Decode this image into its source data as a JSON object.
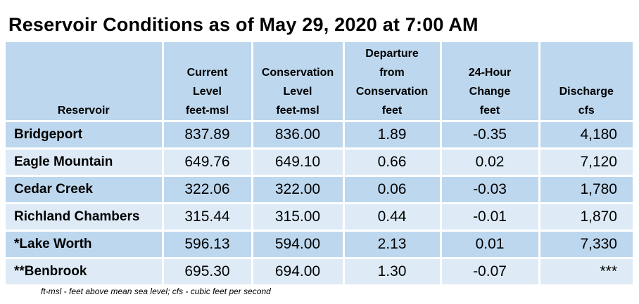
{
  "title": "Reservoir Conditions as of May 29, 2020 at 7:00 AM",
  "headers": {
    "reservoir": "Reservoir",
    "current": [
      "Current",
      "Level",
      "feet-msl"
    ],
    "conservation": [
      "Conservation",
      "Level",
      "feet-msl"
    ],
    "departure": [
      "Departure",
      "from",
      "Conservation",
      "feet"
    ],
    "change": [
      "24-Hour",
      "Change",
      "feet"
    ],
    "discharge": [
      "Discharge",
      "cfs"
    ]
  },
  "rows": [
    {
      "name": "Bridgeport",
      "current": "837.89",
      "conservation": "836.00",
      "departure": "1.89",
      "change": "-0.35",
      "discharge": "4,180"
    },
    {
      "name": "Eagle Mountain",
      "current": "649.76",
      "conservation": "649.10",
      "departure": "0.66",
      "change": "0.02",
      "discharge": "7,120"
    },
    {
      "name": "Cedar Creek",
      "current": "322.06",
      "conservation": "322.00",
      "departure": "0.06",
      "change": "-0.03",
      "discharge": "1,780"
    },
    {
      "name": "Richland Chambers",
      "current": "315.44",
      "conservation": "315.00",
      "departure": "0.44",
      "change": "-0.01",
      "discharge": "1,870"
    },
    {
      "name": "*Lake Worth",
      "current": "596.13",
      "conservation": "594.00",
      "departure": "2.13",
      "change": "0.01",
      "discharge": "7,330"
    },
    {
      "name": "**Benbrook",
      "current": "695.30",
      "conservation": "694.00",
      "departure": "1.30",
      "change": "-0.07",
      "discharge": "***"
    }
  ],
  "footnote": "ft-msl - feet above mean sea level; cfs - cubic feet per second",
  "colors": {
    "header": "#bdd7ee",
    "row_dark": "#bdd7ee",
    "row_light": "#deebf7"
  }
}
